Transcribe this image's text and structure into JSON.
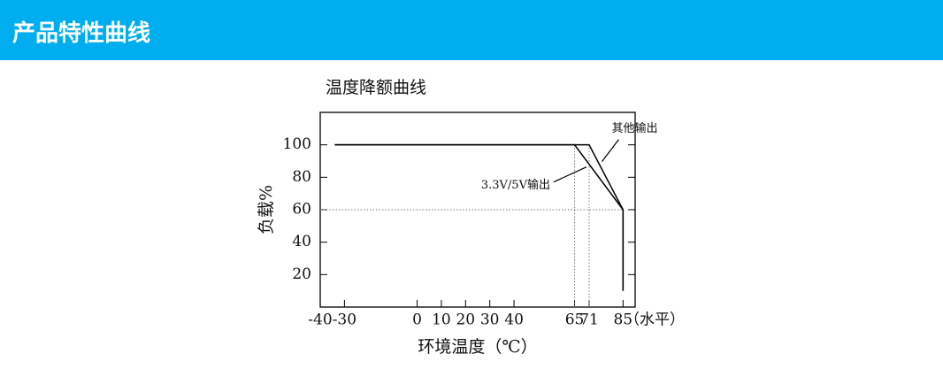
{
  "header": {
    "title": "产品特性曲线"
  },
  "chart_data": {
    "type": "line",
    "title": "温度降额曲线",
    "x_label": "环境温度（℃）",
    "x_unit": "（水平）",
    "y_label": "负载%",
    "series": [
      {
        "name": "其他输出",
        "color": "#000000",
        "x": [
          -34,
          71,
          85,
          85
        ],
        "values": [
          100,
          100,
          60,
          10
        ]
      },
      {
        "name": "3.3V/5V输出",
        "color": "#000000",
        "x": [
          -34,
          65,
          85,
          85
        ],
        "values": [
          100,
          100,
          60,
          10
        ]
      }
    ],
    "xlim": [
      -40,
      90
    ],
    "xticks": [
      -40,
      -30,
      0,
      10,
      20,
      30,
      40,
      65,
      71,
      85
    ],
    "ylim": [
      0,
      120
    ],
    "yticks": [
      20,
      40,
      60,
      80,
      100
    ]
  }
}
